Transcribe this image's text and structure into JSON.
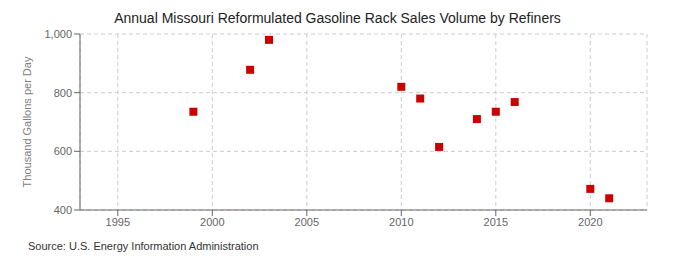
{
  "chart_data": {
    "type": "scatter",
    "title": "Annual Missouri Reformulated Gasoline Rack Sales Volume by Refiners",
    "ylabel": "Thousand Gallons per Day",
    "annotation": "Source: U.S. Energy Information Administration",
    "x": [
      1999,
      2002,
      2003,
      2010,
      2011,
      2012,
      2014,
      2015,
      2016,
      2020,
      2021
    ],
    "values": [
      735,
      878,
      980,
      820,
      780,
      615,
      710,
      735,
      768,
      472,
      440
    ],
    "color": "#cc0000",
    "marker": "square",
    "xlim": [
      1993,
      2023
    ],
    "xticks": [
      1995,
      2000,
      2005,
      2010,
      2015,
      2020
    ],
    "ylim": [
      400,
      1000
    ],
    "yticks": [
      400,
      600,
      800,
      {
        "value": 1000,
        "label": "1,000"
      }
    ],
    "grid": true
  }
}
